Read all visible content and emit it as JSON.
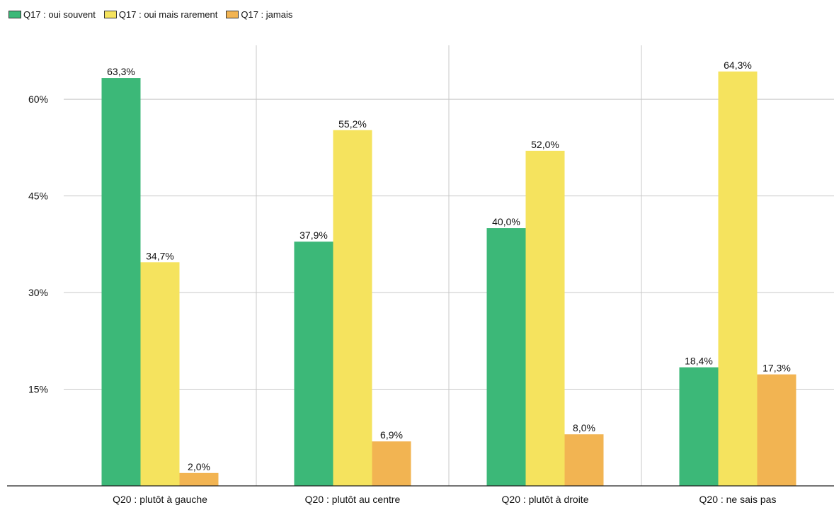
{
  "chart_data": {
    "type": "bar",
    "categories": [
      "Q20 : plutôt à gauche",
      "Q20 : plutôt au centre",
      "Q20 : plutôt à droite",
      "Q20 : ne sais pas"
    ],
    "series": [
      {
        "name": "Q17 : oui souvent",
        "color": "#3cb878",
        "values": [
          63.3,
          37.9,
          40.0,
          18.4
        ],
        "labels": [
          "63,3%",
          "37,9%",
          "40,0%",
          "18,4%"
        ]
      },
      {
        "name": "Q17 : oui mais rarement",
        "color": "#f5e35e",
        "values": [
          34.7,
          55.2,
          52.0,
          64.3
        ],
        "labels": [
          "34,7%",
          "55,2%",
          "52,0%",
          "64,3%"
        ]
      },
      {
        "name": "Q17 : jamais",
        "color": "#f2b452",
        "values": [
          2.0,
          6.9,
          8.0,
          17.3
        ],
        "labels": [
          "2,0%",
          "6,9%",
          "8,0%",
          "17,3%"
        ]
      }
    ],
    "yticks": [
      15,
      30,
      45,
      60
    ],
    "ytick_labels": [
      "15%",
      "30%",
      "45%",
      "60%"
    ],
    "ylim": [
      0,
      71
    ],
    "grid": true,
    "legend_position": "top-left"
  }
}
